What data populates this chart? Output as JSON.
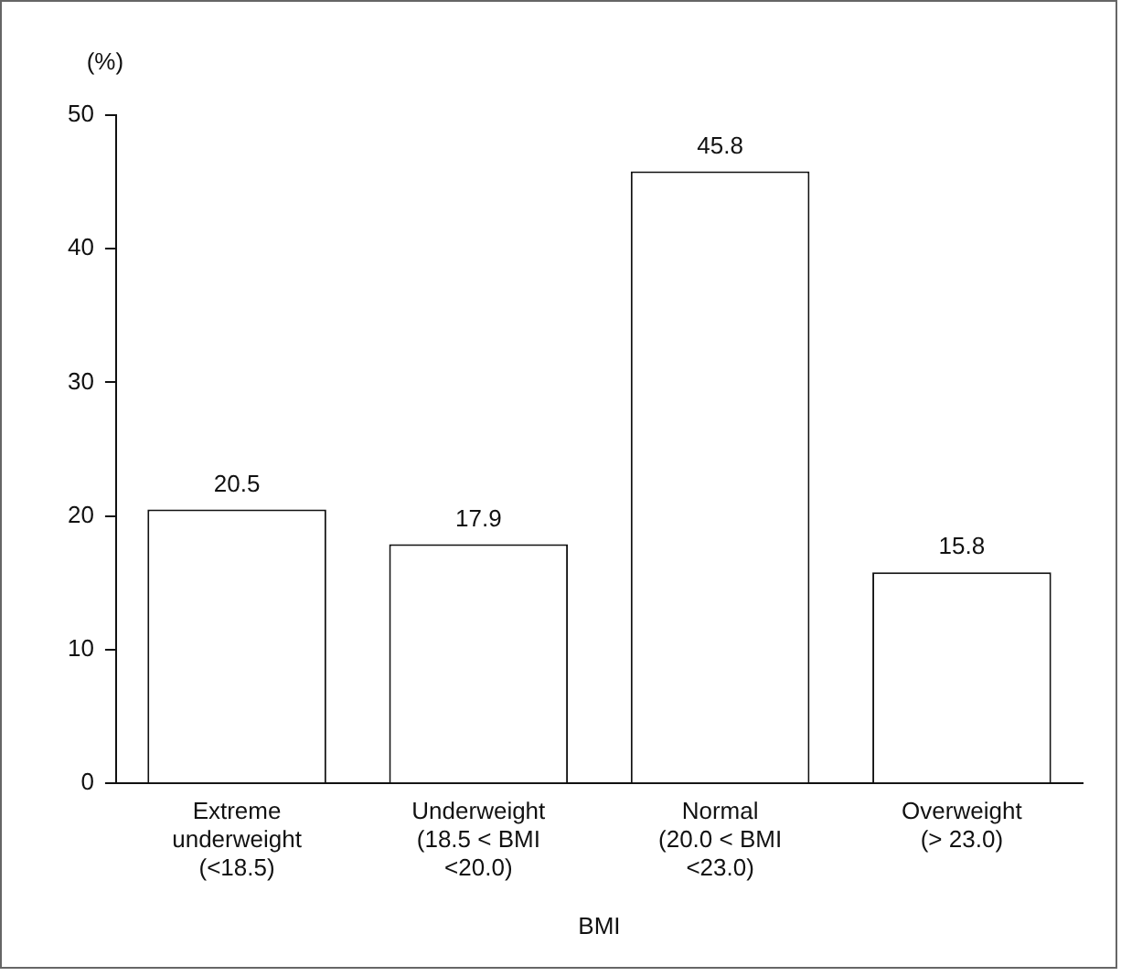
{
  "chart_data": {
    "type": "bar",
    "ylabel": "(%)",
    "xlabel": "BMI",
    "categories": [
      "Extreme\nunderweight\n(<18.5)",
      "Underweight\n(18.5 < BMI\n<20.0)",
      "Normal\n(20.0 < BMI\n<23.0)",
      "Overweight\n(> 23.0)"
    ],
    "values": [
      20.5,
      17.9,
      45.8,
      15.8
    ],
    "color": "#ffffff",
    "ylim": [
      0,
      50
    ],
    "yticks": [
      0,
      10,
      20,
      30,
      40,
      50
    ],
    "grid": false,
    "legend": false,
    "data_labels": true
  }
}
